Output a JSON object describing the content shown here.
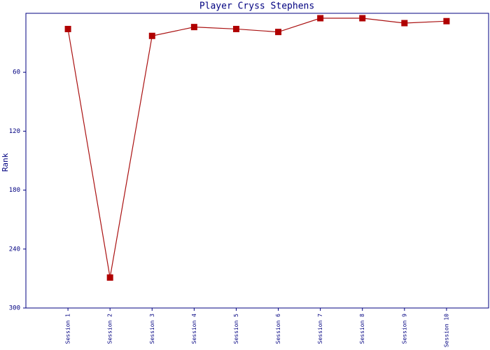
{
  "chart_data": {
    "type": "line",
    "title": "Player Cryss Stephens",
    "y_label": "Rank",
    "categories": [
      "Session 1",
      "Session 2",
      "Session 3",
      "Session 4",
      "Session 5",
      "Session 6",
      "Session 7",
      "Session 8",
      "Session 9",
      "Session 10"
    ],
    "values": [
      16,
      269,
      23,
      14,
      16,
      19,
      5,
      5,
      10,
      8
    ],
    "color": "#b00000",
    "line_color": "#aa1111",
    "axis_color": "#000080",
    "ylim": [
      300,
      0
    ],
    "yticks": [
      60,
      120,
      180,
      240,
      300
    ],
    "grid": false
  }
}
